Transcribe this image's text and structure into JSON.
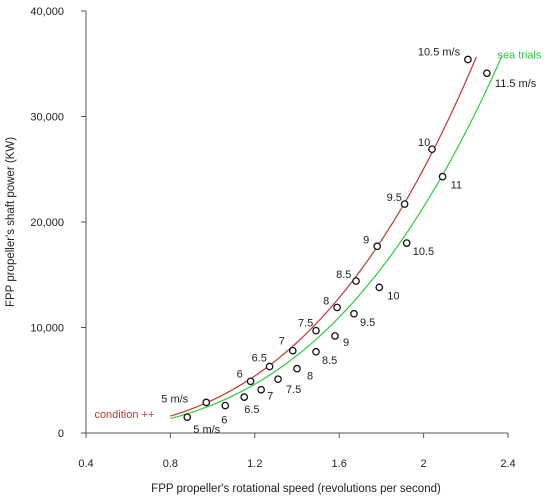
{
  "chart_data": {
    "type": "scatter",
    "xlabel": "FPP propeller's rotational speed (revolutions per second)",
    "ylabel": "FPP propeller's shaft power (KW)",
    "xlim": [
      0.4,
      2.4
    ],
    "ylim": [
      0,
      40000
    ],
    "xticks": [
      0.4,
      0.8,
      1.2,
      1.6,
      2.0,
      2.4
    ],
    "xtick_labels": [
      "0.4",
      "0.8",
      "1.2",
      "1.6",
      "2",
      "2.4"
    ],
    "yticks": [
      0,
      10000,
      20000,
      30000,
      40000
    ],
    "ytick_labels": [
      "0",
      "10,000",
      "20,000",
      "30,000",
      "40,000"
    ],
    "grid": false,
    "series": [
      {
        "name": "condition ++",
        "color": "#c0392b",
        "curve_coef": 3130,
        "curve_x_range": [
          0.8,
          2.25
        ],
        "points": [
          {
            "x": 0.97,
            "y": 2900,
            "label": "5 m/s"
          },
          {
            "x": 1.18,
            "y": 4900,
            "label": "6"
          },
          {
            "x": 1.27,
            "y": 6300,
            "label": "6.5"
          },
          {
            "x": 1.38,
            "y": 7800,
            "label": "7"
          },
          {
            "x": 1.49,
            "y": 9700,
            "label": "7.5"
          },
          {
            "x": 1.59,
            "y": 11900,
            "label": "8"
          },
          {
            "x": 1.68,
            "y": 14400,
            "label": "8.5"
          },
          {
            "x": 1.78,
            "y": 17700,
            "label": "9"
          },
          {
            "x": 1.91,
            "y": 21700,
            "label": "9.5"
          },
          {
            "x": 2.04,
            "y": 26900,
            "label": "10"
          },
          {
            "x": 2.21,
            "y": 35400,
            "label": "10.5 m/s"
          }
        ]
      },
      {
        "name": "sea trials",
        "color": "#2ecc40",
        "curve_coef": 2680,
        "curve_x_range": [
          0.8,
          2.37
        ],
        "points": [
          {
            "x": 0.88,
            "y": 1500,
            "label": "5 m/s"
          },
          {
            "x": 1.06,
            "y": 2600,
            "label": "6"
          },
          {
            "x": 1.15,
            "y": 3400,
            "label": "6.5"
          },
          {
            "x": 1.23,
            "y": 4100,
            "label": "7"
          },
          {
            "x": 1.31,
            "y": 5100,
            "label": "7.5"
          },
          {
            "x": 1.4,
            "y": 6100,
            "label": "8"
          },
          {
            "x": 1.49,
            "y": 7700,
            "label": "8.5"
          },
          {
            "x": 1.58,
            "y": 9200,
            "label": "9"
          },
          {
            "x": 1.67,
            "y": 11300,
            "label": "9.5"
          },
          {
            "x": 1.79,
            "y": 13800,
            "label": "10"
          },
          {
            "x": 1.92,
            "y": 18000,
            "label": "10.5"
          },
          {
            "x": 2.09,
            "y": 24300,
            "label": "11"
          },
          {
            "x": 2.3,
            "y": 34100,
            "label": "11.5 m/s"
          }
        ]
      }
    ]
  }
}
